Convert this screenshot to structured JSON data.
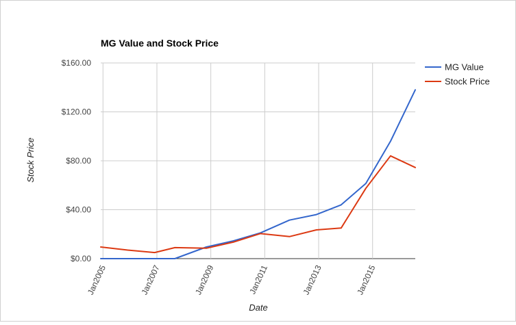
{
  "chart_data": {
    "type": "line",
    "title": "MG Value and Stock Price",
    "xlabel": "Date",
    "ylabel": "Stock Price",
    "x": [
      "2004-12",
      "2005-12",
      "2006-12",
      "2007-09",
      "2008-11",
      "2009-11",
      "2010-11",
      "2011-12",
      "2012-12",
      "2013-11",
      "2014-10",
      "2015-09",
      "2016-08"
    ],
    "series": [
      {
        "name": "MG Value",
        "color": "#3366cc",
        "values": [
          0,
          0,
          0,
          0,
          9.5,
          14.5,
          21,
          31.5,
          36,
          44,
          61.5,
          96,
          138
        ]
      },
      {
        "name": "Stock Price",
        "color": "#dc3912",
        "values": [
          9.5,
          7,
          5,
          9,
          8.5,
          13.5,
          20.5,
          18,
          23.5,
          25,
          57.5,
          84,
          74.5
        ]
      }
    ],
    "ylim": [
      0,
      160
    ],
    "yticks": [
      0,
      40,
      80,
      120,
      160
    ],
    "ytick_labels": [
      "$0.00",
      "$40.00",
      "$80.00",
      "$120.00",
      "$160.00"
    ],
    "xlim": [
      "2004-12",
      "2016-08"
    ],
    "xticks": [
      "2005-01",
      "2007-01",
      "2009-01",
      "2011-01",
      "2013-01",
      "2015-01"
    ],
    "xtick_labels": [
      "Jan2005",
      "Jan2007",
      "Jan2009",
      "Jan2011",
      "Jan2013",
      "Jan2015"
    ],
    "grid": true,
    "legend": "right"
  }
}
